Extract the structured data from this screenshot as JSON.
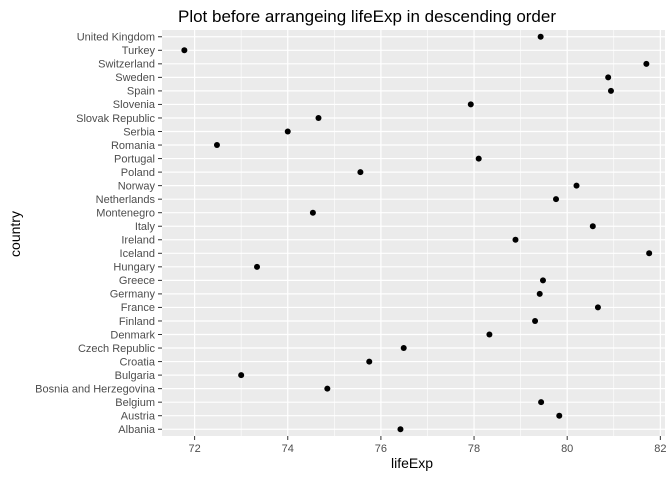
{
  "chart_data": {
    "type": "scatter",
    "title": "Plot before arrangeing lifeExp in descending order",
    "xlabel": "lifeExp",
    "ylabel": "country",
    "xlim": [
      71.3,
      82.1
    ],
    "xticks": [
      72,
      74,
      76,
      78,
      80,
      82
    ],
    "grid": true,
    "legend": "none",
    "colors": {
      "panel": "#ebebeb",
      "grid": "#ffffff",
      "point": "#000000",
      "tick": "#4d4d4d"
    },
    "points": [
      {
        "country": "Albania",
        "value": 76.42
      },
      {
        "country": "Austria",
        "value": 79.83
      },
      {
        "country": "Belgium",
        "value": 79.44
      },
      {
        "country": "Bosnia and Herzegovina",
        "value": 74.85
      },
      {
        "country": "Bulgaria",
        "value": 73.0
      },
      {
        "country": "Croatia",
        "value": 75.75
      },
      {
        "country": "Czech Republic",
        "value": 76.49
      },
      {
        "country": "Denmark",
        "value": 78.33
      },
      {
        "country": "Finland",
        "value": 79.31
      },
      {
        "country": "France",
        "value": 80.66
      },
      {
        "country": "Germany",
        "value": 79.41
      },
      {
        "country": "Greece",
        "value": 79.48
      },
      {
        "country": "Hungary",
        "value": 73.34
      },
      {
        "country": "Iceland",
        "value": 81.76
      },
      {
        "country": "Ireland",
        "value": 78.89
      },
      {
        "country": "Italy",
        "value": 80.55
      },
      {
        "country": "Montenegro",
        "value": 74.54
      },
      {
        "country": "Netherlands",
        "value": 79.76
      },
      {
        "country": "Norway",
        "value": 80.2
      },
      {
        "country": "Poland",
        "value": 75.56
      },
      {
        "country": "Portugal",
        "value": 78.1
      },
      {
        "country": "Romania",
        "value": 72.48
      },
      {
        "country": "Serbia",
        "value": 74.0
      },
      {
        "country": "Slovak Republic",
        "value": 74.66
      },
      {
        "country": "Slovenia",
        "value": 77.93
      },
      {
        "country": "Spain",
        "value": 80.94
      },
      {
        "country": "Sweden",
        "value": 80.88
      },
      {
        "country": "Switzerland",
        "value": 81.7
      },
      {
        "country": "Turkey",
        "value": 71.78
      },
      {
        "country": "United Kingdom",
        "value": 79.43
      }
    ]
  }
}
